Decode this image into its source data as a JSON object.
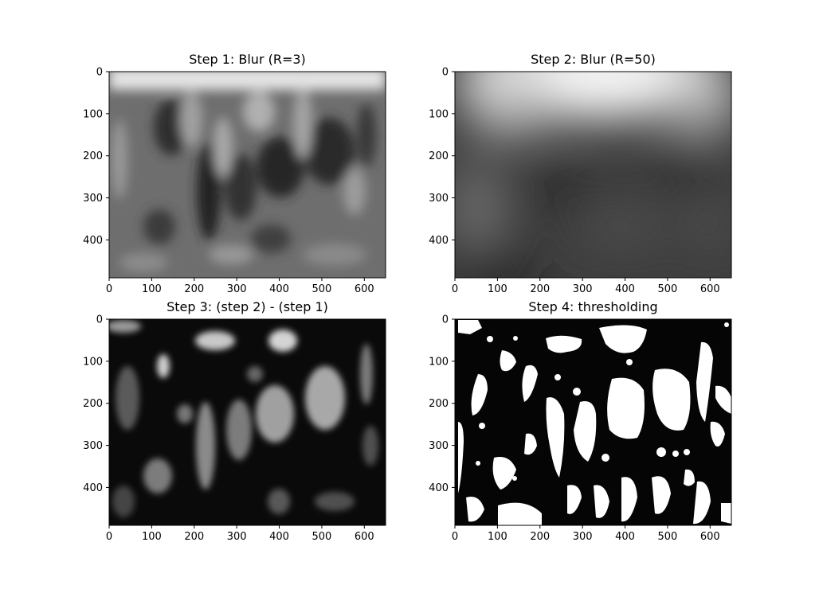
{
  "chart_data": [
    {
      "type": "heatmap",
      "title": "Step 1: Blur (R=3)",
      "xlabel": "",
      "ylabel": "",
      "xlim": [
        0,
        650
      ],
      "ylim": [
        490,
        0
      ],
      "xticks": [
        0,
        100,
        200,
        300,
        400,
        500,
        600
      ],
      "yticks": [
        0,
        100,
        200,
        300,
        400
      ],
      "colormap": "gray",
      "image_style": "blur3"
    },
    {
      "type": "heatmap",
      "title": "Step 2: Blur (R=50)",
      "xlabel": "",
      "ylabel": "",
      "xlim": [
        0,
        650
      ],
      "ylim": [
        490,
        0
      ],
      "xticks": [
        0,
        100,
        200,
        300,
        400,
        500,
        600
      ],
      "yticks": [
        0,
        100,
        200,
        300,
        400
      ],
      "colormap": "gray",
      "image_style": "blur50"
    },
    {
      "type": "heatmap",
      "title": "Step 3: (step 2) - (step 1)",
      "xlabel": "",
      "ylabel": "",
      "xlim": [
        0,
        650
      ],
      "ylim": [
        490,
        0
      ],
      "xticks": [
        0,
        100,
        200,
        300,
        400,
        500,
        600
      ],
      "yticks": [
        0,
        100,
        200,
        300,
        400
      ],
      "colormap": "gray",
      "image_style": "difference"
    },
    {
      "type": "heatmap",
      "title": "Step 4: thresholding",
      "xlabel": "",
      "ylabel": "",
      "xlim": [
        0,
        650
      ],
      "ylim": [
        490,
        0
      ],
      "xticks": [
        0,
        100,
        200,
        300,
        400,
        500,
        600
      ],
      "yticks": [
        0,
        100,
        200,
        300,
        400
      ],
      "colormap": "binary",
      "image_style": "threshold"
    }
  ],
  "colors": {
    "background": "#ffffff",
    "axis": "#000000",
    "dark": "#050505",
    "light": "#ffffff"
  }
}
